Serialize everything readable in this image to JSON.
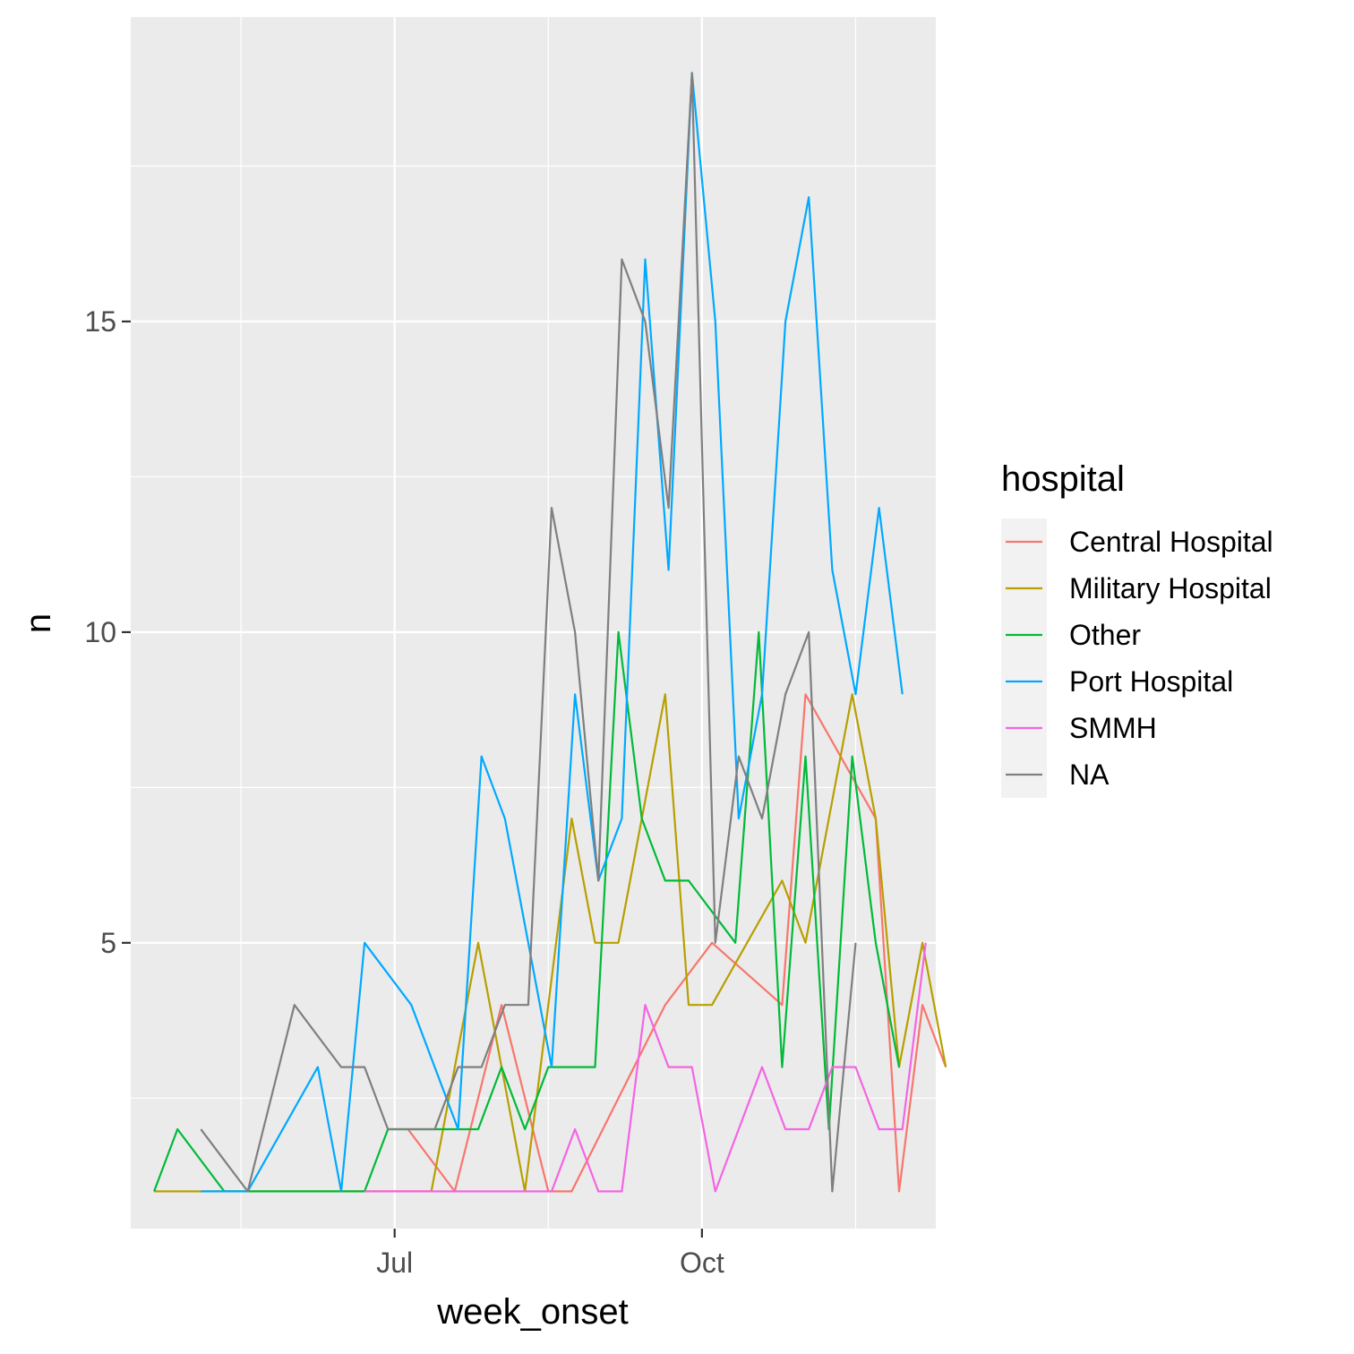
{
  "chart_data": {
    "type": "line",
    "xlabel": "week_onset",
    "ylabel": "n",
    "x_ticks": [
      {
        "label": "Jul",
        "date": "2014-07-01"
      },
      {
        "label": "Oct",
        "date": "2014-10-01"
      }
    ],
    "y_ticks": [
      5,
      10,
      15
    ],
    "ylim": [
      0.4,
      19.9
    ],
    "xlim": [
      "2014-04-13",
      "2014-12-10"
    ],
    "legend": {
      "title": "hospital",
      "position": "right"
    },
    "grid": true,
    "series": [
      {
        "name": "Central Hospital",
        "color": "#F8766D",
        "points": [
          [
            "2014-07-05",
            2
          ],
          [
            "2014-07-19",
            1
          ],
          [
            "2014-08-02",
            4
          ],
          [
            "2014-08-16",
            1
          ],
          [
            "2014-08-23",
            1
          ],
          [
            "2014-09-20",
            4
          ],
          [
            "2014-10-04",
            5
          ],
          [
            "2014-10-25",
            4
          ],
          [
            "2014-11-01",
            9
          ],
          [
            "2014-11-22",
            7
          ],
          [
            "2014-11-29",
            1
          ],
          [
            "2014-12-06",
            4
          ],
          [
            "2014-12-13",
            3
          ]
        ]
      },
      {
        "name": "Military Hospital",
        "color": "#B79F00",
        "points": [
          [
            "2014-04-20",
            1
          ],
          [
            "2014-05-04",
            1
          ],
          [
            "2014-07-12",
            1
          ],
          [
            "2014-07-26",
            5
          ],
          [
            "2014-08-09",
            1
          ],
          [
            "2014-08-23",
            7
          ],
          [
            "2014-08-30",
            5
          ],
          [
            "2014-09-06",
            5
          ],
          [
            "2014-09-20",
            9
          ],
          [
            "2014-09-27",
            4
          ],
          [
            "2014-10-04",
            4
          ],
          [
            "2014-10-25",
            6
          ],
          [
            "2014-11-01",
            5
          ],
          [
            "2014-11-15",
            9
          ],
          [
            "2014-11-22",
            7
          ],
          [
            "2014-11-29",
            3
          ],
          [
            "2014-12-06",
            5
          ],
          [
            "2014-12-13",
            3
          ]
        ]
      },
      {
        "name": "Other",
        "color": "#00BA38",
        "points": [
          [
            "2014-04-20",
            1
          ],
          [
            "2014-04-27",
            2
          ],
          [
            "2014-05-11",
            1
          ],
          [
            "2014-06-22",
            1
          ],
          [
            "2014-06-29",
            2
          ],
          [
            "2014-07-19",
            2
          ],
          [
            "2014-07-26",
            2
          ],
          [
            "2014-08-02",
            3
          ],
          [
            "2014-08-09",
            2
          ],
          [
            "2014-08-16",
            3
          ],
          [
            "2014-08-30",
            3
          ],
          [
            "2014-09-06",
            10
          ],
          [
            "2014-09-13",
            7
          ],
          [
            "2014-09-20",
            6
          ],
          [
            "2014-09-27",
            6
          ],
          [
            "2014-10-11",
            5
          ],
          [
            "2014-10-18",
            10
          ],
          [
            "2014-10-25",
            3
          ],
          [
            "2014-11-01",
            8
          ],
          [
            "2014-11-08",
            2
          ],
          [
            "2014-11-15",
            8
          ],
          [
            "2014-11-22",
            5
          ],
          [
            "2014-11-29",
            3
          ]
        ]
      },
      {
        "name": "Port Hospital",
        "color": "#00A9FF",
        "points": [
          [
            "2014-05-04",
            1
          ],
          [
            "2014-05-18",
            1
          ],
          [
            "2014-06-08",
            3
          ],
          [
            "2014-06-15",
            1
          ],
          [
            "2014-06-22",
            5
          ],
          [
            "2014-07-06",
            4
          ],
          [
            "2014-07-20",
            2
          ],
          [
            "2014-07-27",
            8
          ],
          [
            "2014-08-03",
            7
          ],
          [
            "2014-08-17",
            3
          ],
          [
            "2014-08-24",
            9
          ],
          [
            "2014-08-31",
            6
          ],
          [
            "2014-09-07",
            7
          ],
          [
            "2014-09-14",
            16
          ],
          [
            "2014-09-21",
            11
          ],
          [
            "2014-09-28",
            19
          ],
          [
            "2014-10-05",
            15
          ],
          [
            "2014-10-12",
            7
          ],
          [
            "2014-10-19",
            9
          ],
          [
            "2014-10-26",
            15
          ],
          [
            "2014-11-02",
            17
          ],
          [
            "2014-11-09",
            11
          ],
          [
            "2014-11-16",
            9
          ],
          [
            "2014-11-23",
            12
          ],
          [
            "2014-11-30",
            9
          ]
        ]
      },
      {
        "name": "SMMH",
        "color": "#F564E3",
        "points": [
          [
            "2014-06-22",
            1
          ],
          [
            "2014-08-17",
            1
          ],
          [
            "2014-08-24",
            2
          ],
          [
            "2014-08-31",
            1
          ],
          [
            "2014-09-07",
            1
          ],
          [
            "2014-09-14",
            4
          ],
          [
            "2014-09-21",
            3
          ],
          [
            "2014-09-28",
            3
          ],
          [
            "2014-10-05",
            1
          ],
          [
            "2014-10-19",
            3
          ],
          [
            "2014-10-26",
            2
          ],
          [
            "2014-11-02",
            2
          ],
          [
            "2014-11-09",
            3
          ],
          [
            "2014-11-16",
            3
          ],
          [
            "2014-11-23",
            2
          ],
          [
            "2014-11-30",
            2
          ],
          [
            "2014-12-07",
            5
          ]
        ]
      },
      {
        "name": "NA",
        "color": "#7F7F7F",
        "points": [
          [
            "2014-05-04",
            2
          ],
          [
            "2014-05-18",
            1
          ],
          [
            "2014-06-01",
            4
          ],
          [
            "2014-06-15",
            3
          ],
          [
            "2014-06-22",
            3
          ],
          [
            "2014-06-29",
            2
          ],
          [
            "2014-07-13",
            2
          ],
          [
            "2014-07-20",
            3
          ],
          [
            "2014-07-27",
            3
          ],
          [
            "2014-08-03",
            4
          ],
          [
            "2014-08-10",
            4
          ],
          [
            "2014-08-17",
            12
          ],
          [
            "2014-08-24",
            10
          ],
          [
            "2014-08-31",
            6
          ],
          [
            "2014-09-07",
            16
          ],
          [
            "2014-09-14",
            15
          ],
          [
            "2014-09-21",
            12
          ],
          [
            "2014-09-28",
            19
          ],
          [
            "2014-10-05",
            5
          ],
          [
            "2014-10-12",
            8
          ],
          [
            "2014-10-19",
            7
          ],
          [
            "2014-10-26",
            9
          ],
          [
            "2014-11-02",
            10
          ],
          [
            "2014-11-09",
            1
          ],
          [
            "2014-11-16",
            5
          ]
        ]
      }
    ]
  }
}
